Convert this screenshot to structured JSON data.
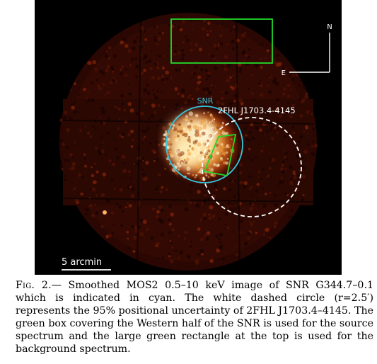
{
  "figure": {
    "labels": {
      "north": "N",
      "east": "E",
      "snr": "SNR",
      "source": "2FHL J1703.4-4145",
      "scale": "5 arcmin"
    },
    "colors": {
      "snr_circle": "#35c6df",
      "green_regions": "#22d92b",
      "dashed_circle": "#ffffff",
      "background": "#000000"
    }
  },
  "caption": {
    "label": "Fig. 2.",
    "text": "— Smoothed MOS2 0.5–10 keV image of SNR G344.7–0.1 which is indicated in cyan. The white dashed circle (r=2.5′) represents the 95% positional uncertainty of 2FHL J1703.4–4145. The green box covering the Western half of the SNR is used for the source spectrum and the large green rectangle at the top is used for the background spectrum."
  }
}
